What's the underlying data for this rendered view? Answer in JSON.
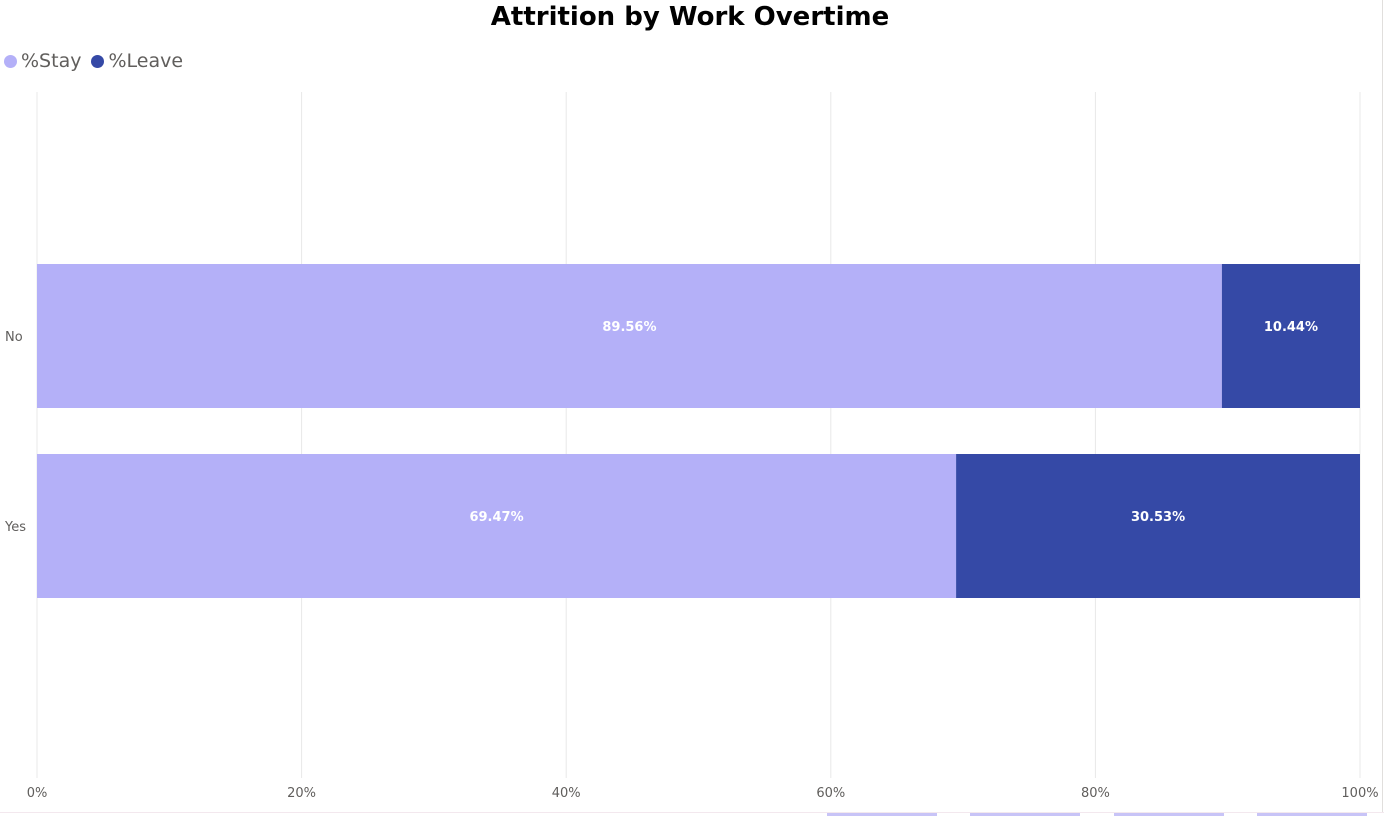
{
  "chart_data": {
    "type": "bar",
    "orientation": "horizontal",
    "stacked": "100%",
    "title": "Attrition by Work Overtime",
    "categories": [
      "No",
      "Yes"
    ],
    "series": [
      {
        "name": "%Stay",
        "values": [
          89.56,
          69.47
        ],
        "labels": [
          "89.56%",
          "69.47%"
        ],
        "color": "#b4b0f8"
      },
      {
        "name": "%Leave",
        "values": [
          10.44,
          30.53
        ],
        "labels": [
          "10.44%",
          "30.53%"
        ],
        "color": "#3549a6"
      }
    ],
    "xlim": [
      0,
      100
    ],
    "xticks": [
      "0%",
      "20%",
      "40%",
      "60%",
      "80%",
      "100%"
    ],
    "grid": "vertical",
    "legend_position": "top-left"
  }
}
